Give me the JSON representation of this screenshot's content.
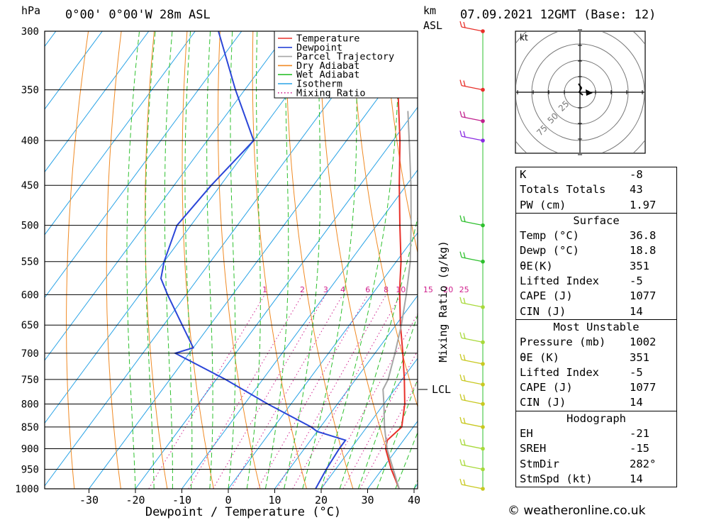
{
  "header": {
    "pressure_unit": "hPa",
    "location": "0°00' 0°00'W 28m ASL",
    "height_unit_line1": "km",
    "height_unit_line2": "ASL",
    "datetime": "07.09.2021 12GMT (Base: 12)"
  },
  "chart_data": {
    "type": "line",
    "xlabel": "Dewpoint / Temperature (°C)",
    "x_ticks": [
      -30,
      -20,
      -10,
      0,
      10,
      20,
      30,
      40
    ],
    "pressure_levels": [
      300,
      350,
      400,
      450,
      500,
      550,
      600,
      650,
      700,
      750,
      800,
      850,
      900,
      950,
      1000
    ],
    "mixing_ratio_label": "Mixing Ratio (g/kg)",
    "mixing_ratio_values": [
      "1",
      "2",
      "3",
      "4",
      "6",
      "8",
      "10",
      "15",
      "20",
      "25"
    ],
    "lcl_label": "LCL",
    "lcl_pressure": 770,
    "legend": [
      "Temperature",
      "Dewpoint",
      "Parcel Trajectory",
      "Dry Adiabat",
      "Wet Adiabat",
      "Isotherm",
      "Mixing Ratio"
    ],
    "series": [
      {
        "name": "Temperature",
        "color": "#e8302a",
        "points": [
          [
            1000,
            36.8
          ],
          [
            950,
            32
          ],
          [
            900,
            27.5
          ],
          [
            880,
            26.5
          ],
          [
            850,
            27.5
          ],
          [
            800,
            24.5
          ],
          [
            750,
            20.5
          ],
          [
            700,
            16
          ],
          [
            650,
            11
          ],
          [
            600,
            6
          ],
          [
            580,
            4
          ],
          [
            550,
            1
          ],
          [
            500,
            -5
          ],
          [
            450,
            -11.5
          ],
          [
            400,
            -18.5
          ],
          [
            350,
            -27
          ],
          [
            300,
            -36
          ]
        ]
      },
      {
        "name": "Dewpoint",
        "color": "#2b46d8",
        "points": [
          [
            1000,
            18.8
          ],
          [
            950,
            18
          ],
          [
            900,
            17.5
          ],
          [
            880,
            17.5
          ],
          [
            860,
            10
          ],
          [
            850,
            8
          ],
          [
            800,
            -5
          ],
          [
            750,
            -18
          ],
          [
            700,
            -33
          ],
          [
            690,
            -30
          ],
          [
            650,
            -36
          ],
          [
            600,
            -44
          ],
          [
            575,
            -48
          ],
          [
            550,
            -50
          ],
          [
            500,
            -53
          ],
          [
            450,
            -52
          ],
          [
            400,
            -50
          ],
          [
            350,
            -62
          ],
          [
            300,
            -75
          ]
        ]
      },
      {
        "name": "Parcel Trajectory",
        "color": "#a6a6a6",
        "points": [
          [
            1000,
            36.8
          ],
          [
            900,
            27.8
          ],
          [
            850,
            23.8
          ],
          [
            800,
            20
          ],
          [
            770,
            17.5
          ],
          [
            750,
            17
          ],
          [
            700,
            14.3
          ],
          [
            650,
            11.2
          ],
          [
            600,
            7.4
          ],
          [
            550,
            3
          ],
          [
            500,
            -2.6
          ],
          [
            450,
            -9
          ],
          [
            400,
            -16.5
          ],
          [
            370,
            -21.5
          ]
        ]
      }
    ],
    "wind_barbs_hidden": false
  },
  "hodograph": {
    "unit": "kt",
    "rings": [
      "25",
      "50",
      "75"
    ]
  },
  "indices": {
    "k_label": "K",
    "k": "-8",
    "tt_label": "Totals Totals",
    "tt": "43",
    "pw_label": "PW (cm)",
    "pw": "1.97"
  },
  "surface": {
    "title": "Surface",
    "temp_label": "Temp (°C)",
    "temp": "36.8",
    "dewp_label": "Dewp (°C)",
    "dewp": "18.8",
    "theta_label": "θE(K)",
    "theta": "351",
    "li_label": "Lifted Index",
    "li": "-5",
    "cape_label": "CAPE (J)",
    "cape": "1077",
    "cin_label": "CIN (J)",
    "cin": "14"
  },
  "most_unstable": {
    "title": "Most Unstable",
    "pressure_label": "Pressure (mb)",
    "pressure": "1002",
    "theta_label": "θE (K)",
    "theta": "351",
    "li_label": "Lifted Index",
    "li": "-5",
    "cape_label": "CAPE (J)",
    "cape": "1077",
    "cin_label": "CIN (J)",
    "cin": "14"
  },
  "hodo_table": {
    "title": "Hodograph",
    "eh_label": "EH",
    "eh": "-21",
    "sreh_label": "SREH",
    "sreh": "-15",
    "stmdir_label": "StmDir",
    "stmdir": "282°",
    "stmspd_label": "StmSpd (kt)",
    "stmspd": "14"
  },
  "footer": {
    "credit": "© weatheronline.co.uk"
  }
}
